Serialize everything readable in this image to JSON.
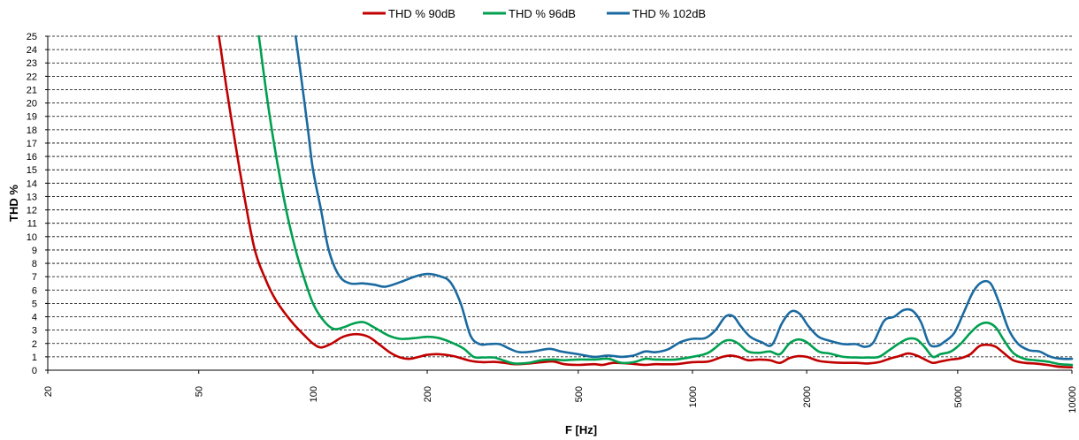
{
  "chart_data": {
    "type": "line",
    "title": "",
    "xlabel": "F [Hz]",
    "ylabel": "THD %",
    "x_scale": "log",
    "xlim": [
      20,
      10000
    ],
    "ylim": [
      0,
      25
    ],
    "x_ticks": [
      20,
      50,
      100,
      200,
      500,
      1000,
      2000,
      5000,
      10000
    ],
    "x_tick_labels": [
      "20",
      "50",
      "100",
      "200",
      "500",
      "1000",
      "2000",
      "5000",
      "10000"
    ],
    "y_ticks": [
      0,
      1,
      2,
      3,
      4,
      5,
      6,
      7,
      8,
      9,
      10,
      11,
      12,
      13,
      14,
      15,
      16,
      17,
      18,
      19,
      20,
      21,
      22,
      23,
      24,
      25
    ],
    "y_tick_labels": [
      "0",
      "1",
      "2",
      "3",
      "4",
      "5",
      "6",
      "7",
      "8",
      "9",
      "10",
      "11",
      "12",
      "13",
      "14",
      "15",
      "16",
      "17",
      "18",
      "19",
      "20",
      "21",
      "22",
      "23",
      "24",
      "25"
    ],
    "grid": "horizontal-dashed",
    "legend_position": "top-center",
    "series": [
      {
        "name": "THD % 90dB",
        "color": "#c00000",
        "points": [
          [
            56.5,
            25
          ],
          [
            60,
            20
          ],
          [
            65,
            14
          ],
          [
            70,
            9.2
          ],
          [
            75,
            6.8
          ],
          [
            80,
            5.2
          ],
          [
            88,
            3.6
          ],
          [
            95,
            2.6
          ],
          [
            100,
            2.0
          ],
          [
            105,
            1.7
          ],
          [
            112,
            2.0
          ],
          [
            120,
            2.5
          ],
          [
            130,
            2.7
          ],
          [
            140,
            2.5
          ],
          [
            150,
            1.9
          ],
          [
            160,
            1.3
          ],
          [
            170,
            0.95
          ],
          [
            180,
            0.85
          ],
          [
            190,
            1.0
          ],
          [
            200,
            1.15
          ],
          [
            215,
            1.2
          ],
          [
            235,
            1.05
          ],
          [
            260,
            0.7
          ],
          [
            280,
            0.6
          ],
          [
            300,
            0.62
          ],
          [
            320,
            0.55
          ],
          [
            340,
            0.45
          ],
          [
            370,
            0.5
          ],
          [
            400,
            0.6
          ],
          [
            430,
            0.65
          ],
          [
            460,
            0.45
          ],
          [
            500,
            0.4
          ],
          [
            550,
            0.45
          ],
          [
            580,
            0.4
          ],
          [
            620,
            0.55
          ],
          [
            680,
            0.5
          ],
          [
            750,
            0.4
          ],
          [
            800,
            0.45
          ],
          [
            900,
            0.45
          ],
          [
            1000,
            0.6
          ],
          [
            1100,
            0.65
          ],
          [
            1200,
            1.0
          ],
          [
            1260,
            1.1
          ],
          [
            1320,
            1.0
          ],
          [
            1400,
            0.75
          ],
          [
            1500,
            0.8
          ],
          [
            1600,
            0.75
          ],
          [
            1700,
            0.55
          ],
          [
            1800,
            0.9
          ],
          [
            1900,
            1.05
          ],
          [
            2000,
            1.0
          ],
          [
            2150,
            0.7
          ],
          [
            2300,
            0.6
          ],
          [
            2500,
            0.55
          ],
          [
            2700,
            0.55
          ],
          [
            2900,
            0.5
          ],
          [
            3100,
            0.6
          ],
          [
            3300,
            0.85
          ],
          [
            3500,
            1.05
          ],
          [
            3700,
            1.25
          ],
          [
            3900,
            1.1
          ],
          [
            4100,
            0.8
          ],
          [
            4300,
            0.55
          ],
          [
            4500,
            0.65
          ],
          [
            4800,
            0.8
          ],
          [
            5100,
            0.9
          ],
          [
            5400,
            1.2
          ],
          [
            5700,
            1.8
          ],
          [
            6000,
            1.9
          ],
          [
            6300,
            1.75
          ],
          [
            6600,
            1.3
          ],
          [
            7000,
            0.75
          ],
          [
            7500,
            0.55
          ],
          [
            8000,
            0.5
          ],
          [
            8600,
            0.4
          ],
          [
            9300,
            0.25
          ],
          [
            10000,
            0.22
          ]
        ]
      },
      {
        "name": "THD % 96dB",
        "color": "#00a050",
        "points": [
          [
            72,
            25
          ],
          [
            76,
            20
          ],
          [
            80,
            16
          ],
          [
            85,
            12
          ],
          [
            90,
            9
          ],
          [
            95,
            6.8
          ],
          [
            100,
            5
          ],
          [
            106,
            3.8
          ],
          [
            113,
            3.1
          ],
          [
            120,
            3.2
          ],
          [
            128,
            3.5
          ],
          [
            136,
            3.6
          ],
          [
            145,
            3.2
          ],
          [
            158,
            2.6
          ],
          [
            170,
            2.35
          ],
          [
            185,
            2.4
          ],
          [
            200,
            2.5
          ],
          [
            215,
            2.4
          ],
          [
            235,
            2.0
          ],
          [
            250,
            1.6
          ],
          [
            265,
            1.0
          ],
          [
            280,
            0.95
          ],
          [
            300,
            0.95
          ],
          [
            320,
            0.7
          ],
          [
            340,
            0.5
          ],
          [
            370,
            0.55
          ],
          [
            400,
            0.75
          ],
          [
            430,
            0.8
          ],
          [
            460,
            0.75
          ],
          [
            500,
            0.8
          ],
          [
            550,
            0.8
          ],
          [
            600,
            0.85
          ],
          [
            650,
            0.55
          ],
          [
            700,
            0.6
          ],
          [
            750,
            0.85
          ],
          [
            800,
            0.8
          ],
          [
            900,
            0.8
          ],
          [
            1000,
            1.0
          ],
          [
            1100,
            1.3
          ],
          [
            1200,
            2.1
          ],
          [
            1260,
            2.25
          ],
          [
            1320,
            2.0
          ],
          [
            1400,
            1.4
          ],
          [
            1500,
            1.3
          ],
          [
            1600,
            1.4
          ],
          [
            1700,
            1.2
          ],
          [
            1800,
            2.0
          ],
          [
            1900,
            2.3
          ],
          [
            2000,
            2.1
          ],
          [
            2150,
            1.4
          ],
          [
            2300,
            1.25
          ],
          [
            2500,
            1.0
          ],
          [
            2700,
            0.95
          ],
          [
            2900,
            0.95
          ],
          [
            3100,
            1.0
          ],
          [
            3300,
            1.5
          ],
          [
            3500,
            2.0
          ],
          [
            3700,
            2.35
          ],
          [
            3900,
            2.3
          ],
          [
            4100,
            1.7
          ],
          [
            4300,
            1.0
          ],
          [
            4500,
            1.2
          ],
          [
            4800,
            1.4
          ],
          [
            5100,
            2.0
          ],
          [
            5400,
            2.8
          ],
          [
            5700,
            3.4
          ],
          [
            6000,
            3.55
          ],
          [
            6300,
            3.2
          ],
          [
            6600,
            2.3
          ],
          [
            7000,
            1.3
          ],
          [
            7500,
            0.85
          ],
          [
            8000,
            0.75
          ],
          [
            8600,
            0.65
          ],
          [
            9300,
            0.45
          ],
          [
            10000,
            0.4
          ]
        ]
      },
      {
        "name": "THD % 102dB",
        "color": "#1a6aa0",
        "points": [
          [
            90,
            25
          ],
          [
            93,
            22
          ],
          [
            97,
            18
          ],
          [
            100,
            15
          ],
          [
            105,
            12
          ],
          [
            110,
            9
          ],
          [
            117,
            7.1
          ],
          [
            125,
            6.5
          ],
          [
            135,
            6.5
          ],
          [
            145,
            6.4
          ],
          [
            155,
            6.25
          ],
          [
            170,
            6.6
          ],
          [
            185,
            7.0
          ],
          [
            200,
            7.2
          ],
          [
            215,
            7.05
          ],
          [
            230,
            6.6
          ],
          [
            245,
            5.0
          ],
          [
            260,
            2.6
          ],
          [
            275,
            1.95
          ],
          [
            290,
            1.95
          ],
          [
            310,
            1.95
          ],
          [
            330,
            1.6
          ],
          [
            350,
            1.35
          ],
          [
            380,
            1.4
          ],
          [
            420,
            1.6
          ],
          [
            450,
            1.4
          ],
          [
            500,
            1.2
          ],
          [
            550,
            1.0
          ],
          [
            600,
            1.1
          ],
          [
            650,
            1.0
          ],
          [
            700,
            1.1
          ],
          [
            750,
            1.4
          ],
          [
            800,
            1.35
          ],
          [
            860,
            1.55
          ],
          [
            930,
            2.1
          ],
          [
            1000,
            2.35
          ],
          [
            1080,
            2.4
          ],
          [
            1150,
            3.0
          ],
          [
            1220,
            4.0
          ],
          [
            1280,
            4.05
          ],
          [
            1340,
            3.3
          ],
          [
            1420,
            2.5
          ],
          [
            1520,
            2.1
          ],
          [
            1620,
            1.9
          ],
          [
            1720,
            3.5
          ],
          [
            1820,
            4.4
          ],
          [
            1920,
            4.2
          ],
          [
            2020,
            3.3
          ],
          [
            2150,
            2.5
          ],
          [
            2300,
            2.2
          ],
          [
            2500,
            1.95
          ],
          [
            2700,
            1.95
          ],
          [
            2850,
            1.75
          ],
          [
            3000,
            2.1
          ],
          [
            3200,
            3.7
          ],
          [
            3400,
            4.0
          ],
          [
            3600,
            4.5
          ],
          [
            3800,
            4.45
          ],
          [
            4000,
            3.6
          ],
          [
            4200,
            2.0
          ],
          [
            4400,
            1.8
          ],
          [
            4600,
            2.1
          ],
          [
            4900,
            2.8
          ],
          [
            5200,
            4.4
          ],
          [
            5500,
            5.9
          ],
          [
            5800,
            6.6
          ],
          [
            6100,
            6.5
          ],
          [
            6400,
            5.2
          ],
          [
            6800,
            3.1
          ],
          [
            7200,
            2.0
          ],
          [
            7700,
            1.5
          ],
          [
            8200,
            1.4
          ],
          [
            8800,
            1.0
          ],
          [
            9400,
            0.85
          ],
          [
            10000,
            0.85
          ]
        ]
      }
    ]
  }
}
